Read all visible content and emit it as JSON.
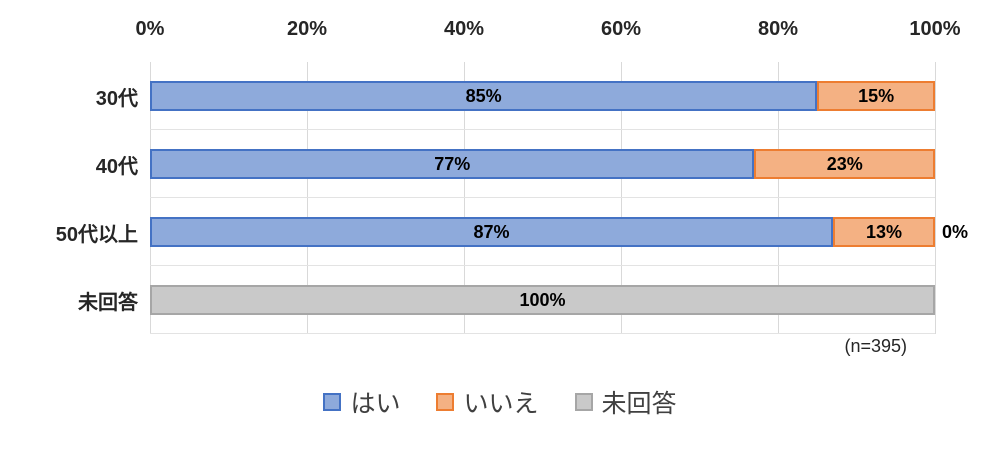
{
  "chart_data": {
    "type": "bar",
    "orientation": "horizontal",
    "stacked": true,
    "title": "",
    "categories": [
      "30代",
      "40代",
      "50代以上",
      "未回答"
    ],
    "series": [
      {
        "name": "はい",
        "fill": "#8EAADB",
        "border": "#4472C4",
        "values": [
          85,
          77,
          87,
          0
        ]
      },
      {
        "name": "いいえ",
        "fill": "#F4B183",
        "border": "#ED7D31",
        "values": [
          15,
          23,
          13,
          0
        ]
      },
      {
        "name": "未回答",
        "fill": "#C9C9C9",
        "border": "#A6A6A6",
        "values": [
          0,
          0,
          0,
          100
        ]
      }
    ],
    "data_label_format": "{value}%",
    "outside_labels": [
      "",
      "",
      "0%",
      ""
    ],
    "x_ticks": [
      "0%",
      "20%",
      "40%",
      "60%",
      "80%",
      "100%"
    ],
    "xlim": [
      0,
      100
    ],
    "grid": "vertical-and-row-separators",
    "grid_color": "#D9D9D9",
    "legend_position": "bottom",
    "annotation": "(n=395)"
  }
}
